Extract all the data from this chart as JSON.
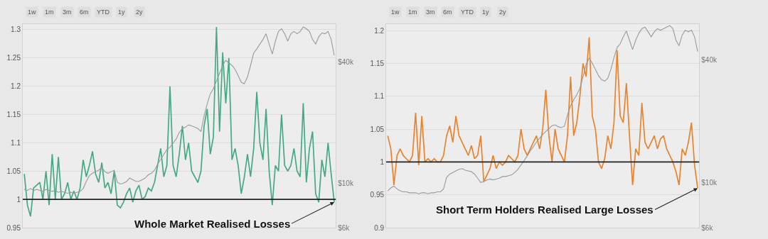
{
  "chart_data": [
    {
      "type": "line",
      "categories": [
        null,
        null,
        null,
        null,
        null,
        null,
        null,
        null,
        null,
        null,
        null,
        null,
        null,
        null,
        null,
        null,
        null,
        null,
        null,
        null,
        null,
        null,
        null,
        null,
        null,
        null,
        null,
        null,
        null,
        null,
        null,
        null,
        null,
        null,
        null,
        null,
        null,
        null,
        null,
        null,
        null,
        null,
        null,
        null,
        null,
        null,
        null,
        null,
        null,
        null,
        null,
        null,
        null,
        null,
        null,
        null,
        null,
        null,
        null,
        null,
        null,
        null,
        null,
        null,
        null,
        null,
        null,
        null,
        null,
        null,
        null,
        null,
        null,
        null,
        null,
        null,
        null,
        null,
        null,
        null,
        null,
        null,
        null,
        null,
        null,
        null,
        null,
        null,
        null,
        null,
        null,
        null,
        null,
        null,
        null,
        null,
        null,
        null,
        null,
        null,
        null
      ],
      "series": [
        {
          "color": "#45a982",
          "values": [
            1.045,
            0.99,
            0.97,
            1.02,
            1.025,
            1.03,
            1.0,
            1.05,
            0.99,
            1.08,
            1.0,
            1.075,
            1.0,
            1.01,
            1.03,
            1.0,
            1.015,
            1.0,
            1.02,
            1.07,
            1.04,
            1.06,
            1.085,
            1.045,
            1.03,
            1.065,
            1.02,
            1.03,
            1.01,
            1.05,
            0.99,
            0.985,
            0.995,
            1.01,
            1.02,
            0.995,
            1.015,
            1.025,
            1.0,
            1.005,
            1.02,
            1.015,
            1.03,
            1.06,
            1.09,
            1.04,
            1.06,
            1.2,
            1.06,
            1.04,
            1.08,
            1.13,
            1.07,
            1.1,
            1.05,
            1.04,
            1.03,
            1.05,
            1.13,
            1.16,
            1.08,
            1.11,
            1.305,
            1.12,
            1.26,
            1.17,
            1.25,
            1.07,
            1.09,
            1.06,
            1.01,
            1.04,
            1.08,
            1.04,
            1.09,
            1.19,
            1.1,
            1.07,
            1.16,
            1.05,
            0.99,
            1.06,
            1.05,
            1.15,
            1.06,
            1.05,
            1.06,
            1.09,
            1.05,
            1.04,
            1.17,
            1.03,
            1.09,
            1.12,
            1.01,
            0.995,
            1.07,
            1.04,
            1.1,
            1.045,
            0.995
          ]
        },
        {
          "color": "#9a9a9a",
          "axis": "y2",
          "values": [
            9300,
            9200,
            9400,
            9200,
            9300,
            9200,
            9100,
            9300,
            9200,
            9100,
            9200,
            9000,
            9100,
            9000,
            8900,
            9000,
            8900,
            9000,
            9100,
            9400,
            10200,
            10900,
            11200,
            11400,
            11600,
            12000,
            11400,
            11200,
            11400,
            11600,
            10100,
            9900,
            10000,
            10200,
            10600,
            10400,
            10200,
            10200,
            10400,
            10600,
            11000,
            11200,
            11600,
            12400,
            13100,
            13900,
            14700,
            15100,
            15800,
            16600,
            17900,
            18700,
            19000,
            19500,
            19300,
            19000,
            18700,
            18100,
            21600,
            24800,
            27900,
            29500,
            32300,
            35300,
            38600,
            40900,
            39700,
            38600,
            36900,
            34300,
            31800,
            31300,
            33800,
            38600,
            44500,
            46600,
            49300,
            52000,
            55500,
            49300,
            44000,
            51000,
            57000,
            58800,
            55500,
            51000,
            55500,
            57000,
            55500,
            57000,
            60000,
            58800,
            57000,
            52000,
            49300,
            53600,
            56000,
            55500,
            57000,
            52000,
            43300
          ]
        }
      ],
      "ylim": [
        0.95,
        1.31
      ],
      "yticks": [
        0.95,
        1,
        1.05,
        1.1,
        1.15,
        1.2,
        1.25,
        1.3
      ],
      "y2lim": [
        6000,
        62000
      ],
      "y2ticks": [
        {
          "value": 6000,
          "label": "$6k"
        },
        {
          "value": 10000,
          "label": "$10k"
        },
        {
          "value": 40000,
          "label": "$40k"
        }
      ],
      "log": "y2",
      "grid": "y",
      "tick_labels": "y",
      "ref_lines": [
        {
          "axis": "y",
          "value": 1,
          "color": "#222222"
        }
      ],
      "annotations": [
        "1w",
        "1m",
        "3m",
        "6m",
        "YTD",
        "1y",
        "2y",
        "Whole Market Realised Losses"
      ]
    },
    {
      "type": "line",
      "categories": [
        null,
        null,
        null,
        null,
        null,
        null,
        null,
        null,
        null,
        null,
        null,
        null,
        null,
        null,
        null,
        null,
        null,
        null,
        null,
        null,
        null,
        null,
        null,
        null,
        null,
        null,
        null,
        null,
        null,
        null,
        null,
        null,
        null,
        null,
        null,
        null,
        null,
        null,
        null,
        null,
        null,
        null,
        null,
        null,
        null,
        null,
        null,
        null,
        null,
        null,
        null,
        null,
        null,
        null,
        null,
        null,
        null,
        null,
        null,
        null,
        null,
        null,
        null,
        null,
        null,
        null,
        null,
        null,
        null,
        null,
        null,
        null,
        null,
        null,
        null,
        null,
        null,
        null,
        null,
        null,
        null,
        null,
        null,
        null,
        null,
        null,
        null,
        null,
        null,
        null,
        null,
        null,
        null,
        null,
        null,
        null,
        null,
        null,
        null,
        null,
        null
      ],
      "series": [
        {
          "color": "#e8832e",
          "values": [
            1.04,
            1.02,
            0.965,
            1.01,
            1.02,
            1.01,
            1.005,
            1.0,
            1.01,
            1.075,
            0.995,
            1.07,
            1.0,
            1.005,
            1.0,
            1.005,
            1.0,
            1.0,
            1.01,
            1.04,
            1.055,
            1.03,
            1.07,
            1.04,
            1.03,
            1.02,
            1.01,
            1.025,
            1.005,
            1.01,
            1.04,
            0.97,
            0.98,
            0.99,
            1.01,
            0.99,
            1.0,
            0.995,
            1.0,
            1.01,
            1.005,
            1.0,
            1.01,
            1.05,
            1.02,
            1.01,
            1.02,
            1.03,
            1.04,
            1.02,
            1.05,
            1.11,
            1.04,
            1.0,
            1.05,
            1.02,
            1.01,
            1.0,
            1.04,
            1.13,
            1.04,
            1.06,
            1.1,
            1.15,
            1.13,
            1.19,
            1.07,
            1.05,
            1.0,
            0.99,
            1.005,
            1.04,
            1.02,
            1.06,
            1.17,
            1.07,
            1.06,
            1.12,
            1.04,
            0.965,
            1.02,
            1.01,
            1.09,
            1.03,
            1.02,
            1.03,
            1.04,
            1.02,
            1.035,
            1.04,
            1.02,
            1.01,
            1.0,
            0.985,
            0.965,
            1.02,
            1.01,
            1.03,
            1.06,
            0.995,
            0.96
          ]
        },
        {
          "color": "#9a9a9a",
          "axis": "y2",
          "values": [
            9100,
            9400,
            9600,
            9300,
            9100,
            9000,
            9000,
            8900,
            8900,
            8900,
            8800,
            8900,
            8900,
            8800,
            8900,
            8900,
            9000,
            9000,
            9300,
            10600,
            11000,
            11200,
            11400,
            11600,
            11700,
            11500,
            11400,
            11300,
            11000,
            10500,
            10000,
            10100,
            10300,
            10400,
            10300,
            10400,
            10500,
            10700,
            10700,
            10800,
            10900,
            11200,
            11600,
            12200,
            12800,
            13500,
            14300,
            15000,
            15800,
            16500,
            17200,
            17800,
            18400,
            19000,
            19200,
            18800,
            18600,
            18900,
            21500,
            23800,
            25500,
            27000,
            29000,
            33000,
            38000,
            40900,
            38500,
            36000,
            33500,
            32000,
            31500,
            32500,
            36000,
            41000,
            46000,
            48000,
            52000,
            55500,
            50000,
            45000,
            50000,
            54000,
            57000,
            58000,
            55000,
            52000,
            55000,
            57000,
            56000,
            57000,
            58000,
            59000,
            57000,
            50000,
            47000,
            53000,
            56000,
            55000,
            56000,
            52000,
            44000
          ]
        }
      ],
      "ylim": [
        0.9,
        1.21
      ],
      "yticks": [
        0.9,
        0.95,
        1,
        1.05,
        1.1,
        1.15,
        1.2
      ],
      "y2lim": [
        6000,
        60000
      ],
      "y2ticks": [
        {
          "value": 6000,
          "label": "$6k"
        },
        {
          "value": 10000,
          "label": "$10k"
        },
        {
          "value": 40000,
          "label": "$40k"
        }
      ],
      "log": "y2",
      "grid": "y",
      "tick_labels": "y",
      "ref_lines": [
        {
          "axis": "y",
          "value": 1,
          "color": "#222222"
        }
      ],
      "annotations": [
        "1w",
        "1m",
        "3m",
        "6m",
        "YTD",
        "1y",
        "2y",
        "Short Term Holders Realised Large Losses"
      ]
    }
  ]
}
